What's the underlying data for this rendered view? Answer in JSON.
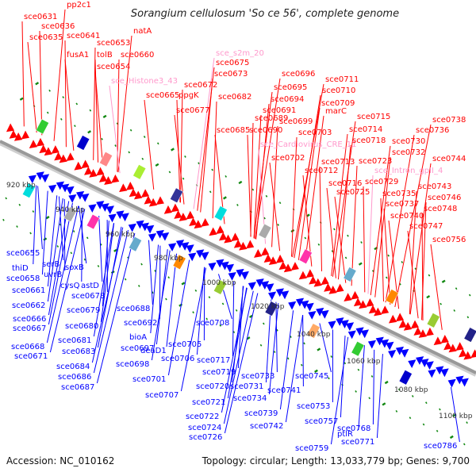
{
  "header": {
    "title": "Sorangium cellulosum 'So ce 56', complete genome"
  },
  "footer": {
    "accession": "Accession: NC_010162",
    "summary": "Topology: circular; Length: 13,033,779 bp; Genes: 9,700"
  },
  "colors": {
    "forward_gene": "#ff0000",
    "reverse_gene": "#0000ff",
    "rna_feature": "#ff99cc",
    "backbone": "#999999",
    "tick": "#118811"
  },
  "scale_ticks": [
    {
      "label": "920 kbp",
      "kbp": 920
    },
    {
      "label": "940 kbp",
      "kbp": 940
    },
    {
      "label": "960 kbp",
      "kbp": 960
    },
    {
      "label": "980 kbp",
      "kbp": 980
    },
    {
      "label": "1000 kbp",
      "kbp": 1000
    },
    {
      "label": "1020 kbp",
      "kbp": 1020
    },
    {
      "label": "1040 kbp",
      "kbp": 1040
    },
    {
      "label": "1060 kbp",
      "kbp": 1060
    },
    {
      "label": "1080 kbp",
      "kbp": 1080
    },
    {
      "label": "1100 kbp",
      "kbp": 1100
    }
  ],
  "forward_labels": [
    {
      "text": "sce0631",
      "type": "gene"
    },
    {
      "text": "pp2c1",
      "type": "gene"
    },
    {
      "text": "sce0636",
      "type": "gene"
    },
    {
      "text": "sce0635",
      "type": "gene"
    },
    {
      "text": "sce0641",
      "type": "gene"
    },
    {
      "text": "fusA1",
      "type": "gene"
    },
    {
      "text": "tolB",
      "type": "gene"
    },
    {
      "text": "sce0653",
      "type": "gene"
    },
    {
      "text": "sce0654",
      "type": "gene"
    },
    {
      "text": "natA",
      "type": "gene"
    },
    {
      "text": "sce0660",
      "type": "gene"
    },
    {
      "text": "sce_Histone3_43",
      "type": "rna"
    },
    {
      "text": "sce0665",
      "type": "gene"
    },
    {
      "text": "ppgK",
      "type": "gene"
    },
    {
      "text": "sce_s2m_20",
      "type": "rna"
    },
    {
      "text": "sce0675",
      "type": "gene"
    },
    {
      "text": "sce0673",
      "type": "gene"
    },
    {
      "text": "sce0672",
      "type": "gene"
    },
    {
      "text": "sce0677",
      "type": "gene"
    },
    {
      "text": "sce0682",
      "type": "gene"
    },
    {
      "text": "sce0685",
      "type": "gene"
    },
    {
      "text": "sce0689",
      "type": "gene"
    },
    {
      "text": "sce0690",
      "type": "gene"
    },
    {
      "text": "sce0691",
      "type": "gene"
    },
    {
      "text": "sce0694",
      "type": "gene"
    },
    {
      "text": "sce0695",
      "type": "gene"
    },
    {
      "text": "sce0696",
      "type": "gene"
    },
    {
      "text": "sce0699",
      "type": "gene"
    },
    {
      "text": "sce_Cardiovirus_CRE_11",
      "type": "rna"
    },
    {
      "text": "sce0702",
      "type": "gene"
    },
    {
      "text": "sce0703",
      "type": "gene"
    },
    {
      "text": "marC",
      "type": "gene"
    },
    {
      "text": "sce0709",
      "type": "gene"
    },
    {
      "text": "sce0710",
      "type": "gene"
    },
    {
      "text": "sce0711",
      "type": "gene"
    },
    {
      "text": "sce0712",
      "type": "gene"
    },
    {
      "text": "sce0713",
      "type": "gene"
    },
    {
      "text": "sce0714",
      "type": "gene"
    },
    {
      "text": "sce0715",
      "type": "gene"
    },
    {
      "text": "sce0716",
      "type": "gene"
    },
    {
      "text": "sce0718",
      "type": "gene"
    },
    {
      "text": "sce0723",
      "type": "gene"
    },
    {
      "text": "sce_Intron_gpII_4",
      "type": "rna"
    },
    {
      "text": "sce0725",
      "type": "gene"
    },
    {
      "text": "sce0729",
      "type": "gene"
    },
    {
      "text": "sce0730",
      "type": "gene"
    },
    {
      "text": "sce0732",
      "type": "gene"
    },
    {
      "text": "sce0735",
      "type": "gene"
    },
    {
      "text": "sce0736",
      "type": "gene"
    },
    {
      "text": "sce0737",
      "type": "gene"
    },
    {
      "text": "sce0738",
      "type": "gene"
    },
    {
      "text": "sce0740",
      "type": "gene"
    },
    {
      "text": "sce0743",
      "type": "gene"
    },
    {
      "text": "sce0744",
      "type": "gene"
    },
    {
      "text": "sce0746",
      "type": "gene"
    },
    {
      "text": "sce0747",
      "type": "gene"
    },
    {
      "text": "sce0748",
      "type": "gene"
    },
    {
      "text": "sce0756",
      "type": "gene"
    }
  ],
  "reverse_labels": [
    {
      "text": "sce0655"
    },
    {
      "text": "thiD"
    },
    {
      "text": "serB"
    },
    {
      "text": "uvrB"
    },
    {
      "text": "sce0658"
    },
    {
      "text": "soxB"
    },
    {
      "text": "sce0661"
    },
    {
      "text": "cysQ"
    },
    {
      "text": "astD"
    },
    {
      "text": "sce0662"
    },
    {
      "text": "sce0678"
    },
    {
      "text": "sce0666"
    },
    {
      "text": "sce0679"
    },
    {
      "text": "sce0667"
    },
    {
      "text": "sce0680"
    },
    {
      "text": "sce0668"
    },
    {
      "text": "sce0681"
    },
    {
      "text": "sce0671"
    },
    {
      "text": "sce0683"
    },
    {
      "text": "sce0684"
    },
    {
      "text": "sce0686"
    },
    {
      "text": "sce0687"
    },
    {
      "text": "sce0688"
    },
    {
      "text": "sce0692"
    },
    {
      "text": "bioA"
    },
    {
      "text": "sce0697"
    },
    {
      "text": "sce0698"
    },
    {
      "text": "sce0701"
    },
    {
      "text": "deaD1"
    },
    {
      "text": "sce0705"
    },
    {
      "text": "sce0706"
    },
    {
      "text": "sce0707"
    },
    {
      "text": "sce0708"
    },
    {
      "text": "sce0717"
    },
    {
      "text": "sce0719"
    },
    {
      "text": "sce0720"
    },
    {
      "text": "sce0721"
    },
    {
      "text": "sce0722"
    },
    {
      "text": "sce0724"
    },
    {
      "text": "sce0726"
    },
    {
      "text": "sce0731"
    },
    {
      "text": "sce0733"
    },
    {
      "text": "sce0734"
    },
    {
      "text": "sce0739"
    },
    {
      "text": "sce0741"
    },
    {
      "text": "sce0742"
    },
    {
      "text": "sce0745"
    },
    {
      "text": "sce0753"
    },
    {
      "text": "sce0757"
    },
    {
      "text": "ptlR"
    },
    {
      "text": "sce0759"
    },
    {
      "text": "sce0768"
    },
    {
      "text": "sce0771"
    },
    {
      "text": "sce0786"
    }
  ]
}
